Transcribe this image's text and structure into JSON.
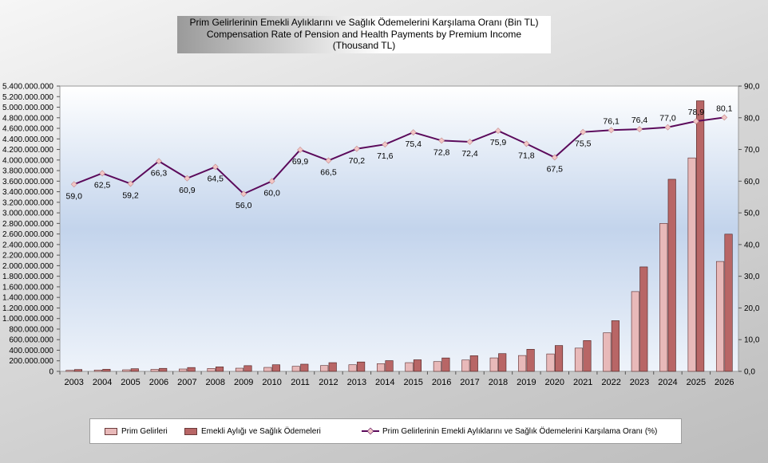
{
  "title": {
    "line1": "Prim Gelirlerinin  Emekli Aylıklarını ve Sağlık Ödemelerini Karşılama Oranı (Bin TL)",
    "line2": "Compensation Rate of Pension and Health Payments by Premium Income",
    "line3": "(Thousand TL)"
  },
  "colors": {
    "bar_prim": "#e8b9b9",
    "bar_odeme": "#b86666",
    "line": "#5b0a5b",
    "marker": "#f2c6c6"
  },
  "legend": {
    "prim": "Prim Gelirleri",
    "odeme": "Emekli Aylığı  ve Sağlık Ödemeleri",
    "oran": "Prim Gelirlerinin Emekli Aylıklarını ve Sağlık Ödemelerini Karşılama Oranı (%)"
  },
  "chart_data": {
    "type": "bar",
    "title": "Prim Gelirlerinin  Emekli Aylıklarını ve Sağlık Ödemelerini Karşılama Oranı (Bin TL)",
    "categories": [
      "2003",
      "2004",
      "2005",
      "2006",
      "2007",
      "2008",
      "2009",
      "2010",
      "2011",
      "2012",
      "2013",
      "2014",
      "2015",
      "2016",
      "2017",
      "2018",
      "2019",
      "2020",
      "2021",
      "2022",
      "2023",
      "2024",
      "2025",
      "2026"
    ],
    "series": [
      {
        "name": "Prim Gelirleri",
        "type": "bar",
        "axis": "left",
        "values": [
          20000000,
          25000000,
          30000000,
          38000000,
          45000000,
          55000000,
          60000000,
          75000000,
          95000000,
          110000000,
          125000000,
          145000000,
          165000000,
          185000000,
          215000000,
          255000000,
          300000000,
          330000000,
          440000000,
          730000000,
          1510000000,
          2800000000,
          4040000000,
          2080000000
        ]
      },
      {
        "name": "Emekli Aylığı  ve Sağlık Ödemeleri",
        "type": "bar",
        "axis": "left",
        "values": [
          35000000,
          40000000,
          50000000,
          57000000,
          73000000,
          85000000,
          108000000,
          125000000,
          136000000,
          165000000,
          178000000,
          203000000,
          219000000,
          254000000,
          296000000,
          336000000,
          418000000,
          489000000,
          583000000,
          959000000,
          1977000000,
          3636000000,
          5121000000,
          2597000000
        ]
      },
      {
        "name": "Prim Gelirlerinin Emekli Aylıklarını ve Sağlık Ödemelerini Karşılama Oranı (%)",
        "type": "line",
        "axis": "right",
        "values": [
          59.0,
          62.5,
          59.2,
          66.3,
          60.9,
          64.5,
          56.0,
          60.0,
          69.9,
          66.5,
          70.2,
          71.6,
          75.4,
          72.8,
          72.4,
          75.9,
          71.8,
          67.5,
          75.5,
          76.1,
          76.4,
          77.0,
          78.9,
          80.1
        ],
        "labels": [
          "59,0",
          "62,5",
          "59,2",
          "66,3",
          "60,9",
          "64,5",
          "56,0",
          "60,0",
          "69,9",
          "66,5",
          "70,2",
          "71,6",
          "75,4",
          "72,8",
          "72,4",
          "75,9",
          "71,8",
          "67,5",
          "75,5",
          "76,1",
          "76,4",
          "77,0",
          "78,9",
          "80,1"
        ]
      }
    ],
    "y_left": {
      "ylim": [
        0,
        5400000000
      ],
      "ticks": [
        "0",
        "200.000.000",
        "400.000.000",
        "600.000.000",
        "800.000.000",
        "1.000.000.000",
        "1.200.000.000",
        "1.400.000.000",
        "1.600.000.000",
        "1.800.000.000",
        "2.000.000.000",
        "2.200.000.000",
        "2.400.000.000",
        "2.600.000.000",
        "2.800.000.000",
        "3.000.000.000",
        "3.200.000.000",
        "3.400.000.000",
        "3.600.000.000",
        "3.800.000.000",
        "4.000.000.000",
        "4.200.000.000",
        "4.400.000.000",
        "4.600.000.000",
        "4.800.000.000",
        "5.000.000.000",
        "5.200.000.000",
        "5.400.000.000"
      ]
    },
    "y_right": {
      "ylim": [
        0,
        90
      ],
      "ticks": [
        "0,0",
        "10,0",
        "20,0",
        "30,0",
        "40,0",
        "50,0",
        "60,0",
        "70,0",
        "80,0",
        "90,0"
      ]
    },
    "grid": false,
    "legend_position": "bottom"
  }
}
